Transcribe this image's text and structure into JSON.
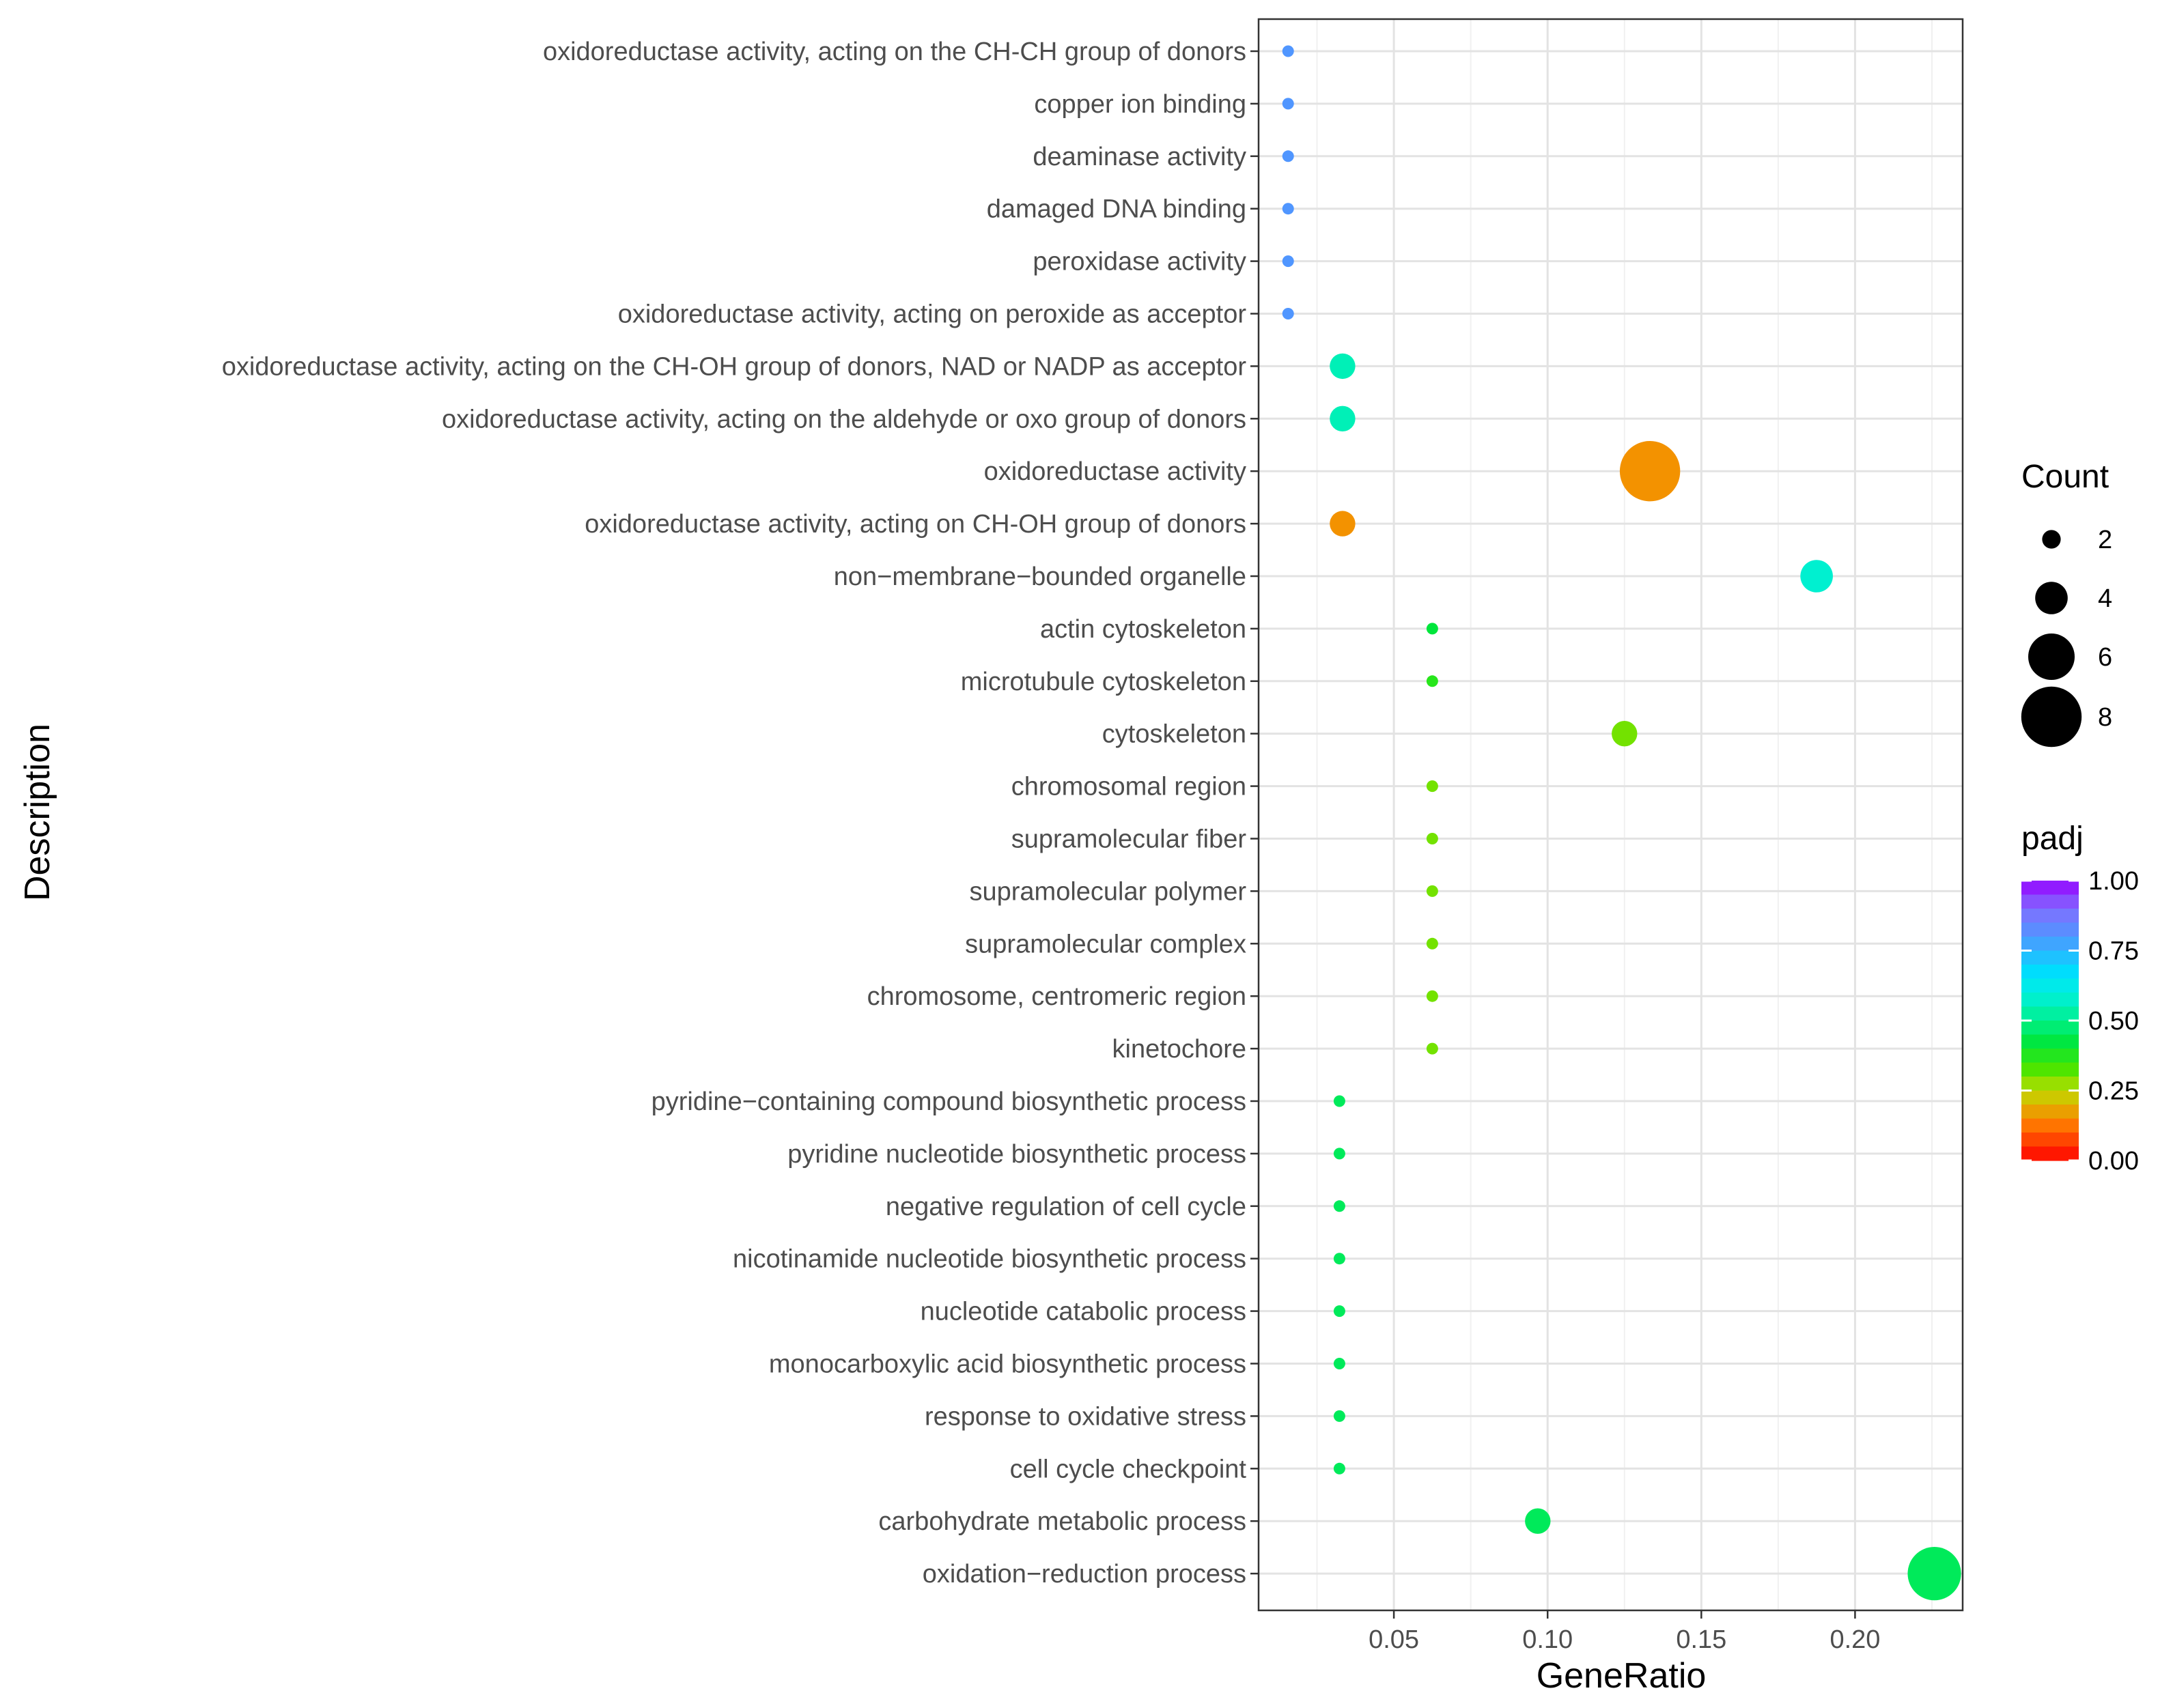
{
  "chart_data": {
    "type": "scatter",
    "subtype": "dot-plot",
    "xlabel": "GeneRatio",
    "ylabel": "Description",
    "xlim": [
      0.006,
      0.235
    ],
    "xticks": [
      0.05,
      0.1,
      0.15,
      0.2
    ],
    "xtick_labels": [
      "0.05",
      "0.10",
      "0.15",
      "0.20"
    ],
    "grid": true,
    "points": [
      {
        "description": "oxidoreductase activity, acting on the CH-CH group of donors",
        "gene_ratio": 0.0156,
        "count": 1,
        "padj": 0.8
      },
      {
        "description": "copper ion binding",
        "gene_ratio": 0.0156,
        "count": 1,
        "padj": 0.8
      },
      {
        "description": "deaminase activity",
        "gene_ratio": 0.0156,
        "count": 1,
        "padj": 0.8
      },
      {
        "description": "damaged DNA binding",
        "gene_ratio": 0.0156,
        "count": 1,
        "padj": 0.8
      },
      {
        "description": "peroxidase activity",
        "gene_ratio": 0.0156,
        "count": 1,
        "padj": 0.8
      },
      {
        "description": "oxidoreductase activity, acting on peroxide as acceptor",
        "gene_ratio": 0.0156,
        "count": 1,
        "padj": 0.8
      },
      {
        "description": "oxidoreductase activity, acting on the CH-OH group of donors, NAD or NADP as acceptor",
        "gene_ratio": 0.0333,
        "count": 3,
        "padj": 0.55
      },
      {
        "description": "oxidoreductase activity, acting on the aldehyde or oxo group of donors",
        "gene_ratio": 0.0333,
        "count": 3,
        "padj": 0.55
      },
      {
        "description": "oxidoreductase activity",
        "gene_ratio": 0.1333,
        "count": 8,
        "padj": 0.16
      },
      {
        "description": "oxidoreductase activity, acting on CH-OH group of donors",
        "gene_ratio": 0.0333,
        "count": 3,
        "padj": 0.16
      },
      {
        "description": "non−membrane−bounded organelle",
        "gene_ratio": 0.1875,
        "count": 4,
        "padj": 0.58
      },
      {
        "description": "actin cytoskeleton",
        "gene_ratio": 0.0625,
        "count": 1,
        "padj": 0.42
      },
      {
        "description": "microtubule cytoskeleton",
        "gene_ratio": 0.0625,
        "count": 1,
        "padj": 0.37
      },
      {
        "description": "cytoskeleton",
        "gene_ratio": 0.125,
        "count": 3,
        "padj": 0.3
      },
      {
        "description": "chromosomal region",
        "gene_ratio": 0.0625,
        "count": 1,
        "padj": 0.3
      },
      {
        "description": "supramolecular fiber",
        "gene_ratio": 0.0625,
        "count": 1,
        "padj": 0.3
      },
      {
        "description": "supramolecular polymer",
        "gene_ratio": 0.0625,
        "count": 1,
        "padj": 0.3
      },
      {
        "description": "supramolecular complex",
        "gene_ratio": 0.0625,
        "count": 1,
        "padj": 0.3
      },
      {
        "description": "chromosome, centromeric region",
        "gene_ratio": 0.0625,
        "count": 1,
        "padj": 0.3
      },
      {
        "description": "kinetochore",
        "gene_ratio": 0.0625,
        "count": 1,
        "padj": 0.3
      },
      {
        "description": "pyridine−containing compound biosynthetic process",
        "gene_ratio": 0.0323,
        "count": 1,
        "padj": 0.45
      },
      {
        "description": "pyridine nucleotide biosynthetic process",
        "gene_ratio": 0.0323,
        "count": 1,
        "padj": 0.45
      },
      {
        "description": "negative regulation of cell cycle",
        "gene_ratio": 0.0323,
        "count": 1,
        "padj": 0.45
      },
      {
        "description": "nicotinamide nucleotide biosynthetic process",
        "gene_ratio": 0.0323,
        "count": 1,
        "padj": 0.45
      },
      {
        "description": "nucleotide catabolic process",
        "gene_ratio": 0.0323,
        "count": 1,
        "padj": 0.45
      },
      {
        "description": "monocarboxylic acid biosynthetic process",
        "gene_ratio": 0.0323,
        "count": 1,
        "padj": 0.45
      },
      {
        "description": "response to oxidative stress",
        "gene_ratio": 0.0323,
        "count": 1,
        "padj": 0.45
      },
      {
        "description": "cell cycle checkpoint",
        "gene_ratio": 0.0323,
        "count": 1,
        "padj": 0.45
      },
      {
        "description": "carbohydrate metabolic process",
        "gene_ratio": 0.0968,
        "count": 3,
        "padj": 0.45
      },
      {
        "description": "oxidation−reduction process",
        "gene_ratio": 0.2258,
        "count": 7,
        "padj": 0.45
      }
    ],
    "legend": {
      "size": {
        "title": "Count",
        "breaks": [
          2,
          4,
          6,
          8
        ],
        "labels": [
          "2",
          "4",
          "6",
          "8"
        ]
      },
      "color": {
        "title": "padj",
        "range": [
          0.0,
          1.0
        ],
        "breaks": [
          1.0,
          0.75,
          0.5,
          0.25,
          0.0
        ],
        "labels": [
          "1.00",
          "0.75",
          "0.50",
          "0.25",
          "0.00"
        ],
        "colormap": "rainbow (red low, violet high)"
      }
    }
  }
}
